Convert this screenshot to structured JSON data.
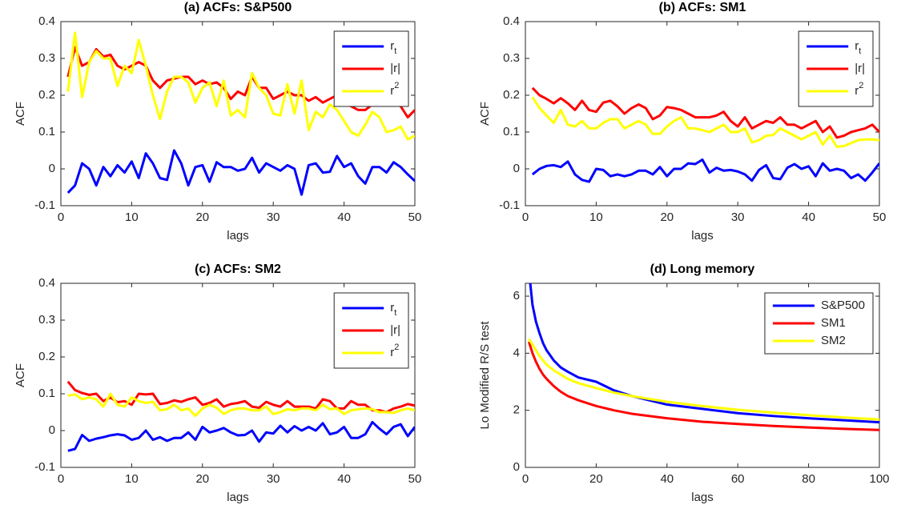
{
  "chart_data": [
    {
      "type": "line",
      "title": "(a) ACFs: S&P500",
      "x_label": "lags",
      "y_label": "ACF",
      "x": [
        1,
        2,
        3,
        4,
        5,
        6,
        7,
        8,
        9,
        10,
        11,
        12,
        13,
        14,
        15,
        16,
        17,
        18,
        19,
        20,
        21,
        22,
        23,
        24,
        25,
        26,
        27,
        28,
        29,
        30,
        31,
        32,
        33,
        34,
        35,
        36,
        37,
        38,
        39,
        40,
        41,
        42,
        43,
        44,
        45,
        46,
        47,
        48,
        49,
        50
      ],
      "xlim": [
        0,
        50
      ],
      "xticks": [
        0,
        10,
        20,
        30,
        40,
        50
      ],
      "ylim": [
        -0.1,
        0.4
      ],
      "yticks": [
        -0.1,
        0,
        0.1,
        0.2,
        0.3,
        0.4
      ],
      "legend": "upper right",
      "series": [
        {
          "name": "r_t",
          "color": "#0000ff",
          "values": [
            -0.065,
            -0.045,
            0.015,
            0,
            -0.045,
            0.005,
            -0.02,
            0.01,
            -0.01,
            0.02,
            -0.025,
            0.042,
            0.015,
            -0.025,
            -0.03,
            0.05,
            0.015,
            -0.045,
            0.005,
            0.01,
            -0.035,
            0.018,
            0.005,
            0.005,
            -0.005,
            0,
            0.03,
            -0.01,
            0.015,
            0.005,
            -0.005,
            0.01,
            0,
            -0.07,
            0.01,
            0.015,
            -0.01,
            -0.008,
            0.035,
            0.005,
            0.015,
            -0.02,
            -0.04,
            0.005,
            0.005,
            -0.01,
            0.018,
            0.005,
            -0.015,
            -0.033
          ]
        },
        {
          "name": "|r|",
          "color": "#ff0000",
          "values": [
            0.25,
            0.33,
            0.28,
            0.29,
            0.325,
            0.305,
            0.31,
            0.28,
            0.27,
            0.28,
            0.29,
            0.28,
            0.24,
            0.22,
            0.24,
            0.245,
            0.25,
            0.25,
            0.23,
            0.24,
            0.23,
            0.235,
            0.22,
            0.19,
            0.21,
            0.2,
            0.25,
            0.22,
            0.22,
            0.19,
            0.2,
            0.21,
            0.2,
            0.2,
            0.185,
            0.195,
            0.18,
            0.19,
            0.2,
            0.18,
            0.17,
            0.16,
            0.16,
            0.175,
            0.19,
            0.18,
            0.18,
            0.17,
            0.14,
            0.16
          ]
        },
        {
          "name": "r^2",
          "color": "#ffff00",
          "values": [
            0.21,
            0.37,
            0.195,
            0.29,
            0.32,
            0.3,
            0.3,
            0.225,
            0.28,
            0.26,
            0.35,
            0.28,
            0.2,
            0.135,
            0.21,
            0.25,
            0.25,
            0.235,
            0.18,
            0.22,
            0.235,
            0.17,
            0.24,
            0.145,
            0.16,
            0.14,
            0.26,
            0.22,
            0.2,
            0.15,
            0.145,
            0.23,
            0.15,
            0.24,
            0.105,
            0.155,
            0.14,
            0.175,
            0.16,
            0.13,
            0.1,
            0.09,
            0.12,
            0.155,
            0.14,
            0.1,
            0.105,
            0.115,
            0.08,
            0.09
          ]
        }
      ]
    },
    {
      "type": "line",
      "title": "(b) ACFs: SM1",
      "x_label": "lags",
      "y_label": "ACF",
      "x": [
        1,
        2,
        3,
        4,
        5,
        6,
        7,
        8,
        9,
        10,
        11,
        12,
        13,
        14,
        15,
        16,
        17,
        18,
        19,
        20,
        21,
        22,
        23,
        24,
        25,
        26,
        27,
        28,
        29,
        30,
        31,
        32,
        33,
        34,
        35,
        36,
        37,
        38,
        39,
        40,
        41,
        42,
        43,
        44,
        45,
        46,
        47,
        48,
        49,
        50
      ],
      "xlim": [
        0,
        50
      ],
      "xticks": [
        0,
        10,
        20,
        30,
        40,
        50
      ],
      "ylim": [
        -0.1,
        0.4
      ],
      "yticks": [
        -0.1,
        0,
        0.1,
        0.2,
        0.3,
        0.4
      ],
      "legend": "upper right",
      "series": [
        {
          "name": "r_t",
          "color": "#0000ff",
          "values": [
            -0.015,
            0,
            0.008,
            0.01,
            0.005,
            0.02,
            -0.015,
            -0.03,
            -0.035,
            0,
            -0.003,
            -0.02,
            -0.015,
            -0.02,
            -0.015,
            -0.005,
            -0.005,
            -0.015,
            0.005,
            -0.02,
            0,
            0,
            0.015,
            0.013,
            0.025,
            -0.01,
            0.003,
            -0.005,
            -0.003,
            -0.007,
            -0.015,
            -0.032,
            -0.003,
            0.01,
            -0.025,
            -0.028,
            0.003,
            0.013,
            0,
            0.007,
            -0.02,
            0.015,
            -0.005,
            0,
            -0.005,
            -0.025,
            -0.015,
            -0.032,
            -0.01,
            0.015
          ]
        },
        {
          "name": "|r|",
          "color": "#ff0000",
          "values": [
            0.22,
            0.2,
            0.19,
            0.178,
            0.192,
            0.178,
            0.16,
            0.185,
            0.16,
            0.155,
            0.18,
            0.185,
            0.17,
            0.15,
            0.165,
            0.175,
            0.165,
            0.135,
            0.145,
            0.168,
            0.165,
            0.16,
            0.15,
            0.14,
            0.14,
            0.14,
            0.145,
            0.155,
            0.13,
            0.115,
            0.14,
            0.11,
            0.12,
            0.13,
            0.125,
            0.14,
            0.12,
            0.12,
            0.11,
            0.12,
            0.13,
            0.1,
            0.115,
            0.085,
            0.09,
            0.1,
            0.105,
            0.11,
            0.12,
            0.1
          ]
        },
        {
          "name": "r^2",
          "color": "#ffff00",
          "values": [
            0.195,
            0.165,
            0.145,
            0.125,
            0.16,
            0.12,
            0.115,
            0.13,
            0.11,
            0.11,
            0.125,
            0.135,
            0.135,
            0.11,
            0.12,
            0.13,
            0.12,
            0.095,
            0.095,
            0.115,
            0.13,
            0.14,
            0.11,
            0.11,
            0.105,
            0.1,
            0.11,
            0.12,
            0.1,
            0.1,
            0.11,
            0.072,
            0.078,
            0.09,
            0.092,
            0.11,
            0.1,
            0.09,
            0.08,
            0.09,
            0.1,
            0.066,
            0.09,
            0.06,
            0.062,
            0.07,
            0.078,
            0.08,
            0.08,
            0.078
          ]
        }
      ]
    },
    {
      "type": "line",
      "title": "(c) ACFs: SM2",
      "x_label": "lags",
      "y_label": "ACF",
      "x": [
        1,
        2,
        3,
        4,
        5,
        6,
        7,
        8,
        9,
        10,
        11,
        12,
        13,
        14,
        15,
        16,
        17,
        18,
        19,
        20,
        21,
        22,
        23,
        24,
        25,
        26,
        27,
        28,
        29,
        30,
        31,
        32,
        33,
        34,
        35,
        36,
        37,
        38,
        39,
        40,
        41,
        42,
        43,
        44,
        45,
        46,
        47,
        48,
        49,
        50
      ],
      "xlim": [
        0,
        50
      ],
      "xticks": [
        0,
        10,
        20,
        30,
        40,
        50
      ],
      "ylim": [
        -0.1,
        0.4
      ],
      "yticks": [
        -0.1,
        0,
        0.1,
        0.2,
        0.3,
        0.4
      ],
      "legend": "upper right",
      "series": [
        {
          "name": "r_t",
          "color": "#0000ff",
          "values": [
            -0.055,
            -0.05,
            -0.012,
            -0.028,
            -0.022,
            -0.018,
            -0.013,
            -0.01,
            -0.013,
            -0.025,
            -0.02,
            0,
            -0.025,
            -0.018,
            -0.028,
            -0.02,
            -0.02,
            -0.005,
            -0.025,
            0.01,
            -0.005,
            0,
            0.007,
            -0.005,
            -0.013,
            -0.012,
            0,
            -0.03,
            -0.005,
            -0.008,
            0.013,
            -0.005,
            0.012,
            0,
            0.01,
            0,
            0.02,
            -0.01,
            -0.005,
            0.01,
            -0.02,
            -0.02,
            -0.01,
            0.023,
            0.005,
            -0.01,
            0.01,
            0.017,
            -0.015,
            0.01
          ]
        },
        {
          "name": "|r|",
          "color": "#ff0000",
          "values": [
            0.133,
            0.11,
            0.102,
            0.097,
            0.1,
            0.08,
            0.09,
            0.077,
            0.08,
            0.07,
            0.1,
            0.098,
            0.1,
            0.072,
            0.075,
            0.082,
            0.078,
            0.085,
            0.09,
            0.07,
            0.075,
            0.085,
            0.065,
            0.072,
            0.075,
            0.08,
            0.065,
            0.062,
            0.078,
            0.07,
            0.065,
            0.08,
            0.065,
            0.065,
            0.065,
            0.06,
            0.085,
            0.08,
            0.06,
            0.06,
            0.08,
            0.07,
            0.07,
            0.055,
            0.055,
            0.05,
            0.06,
            0.065,
            0.072,
            0.068
          ]
        },
        {
          "name": "r^2",
          "color": "#ffff00",
          "values": [
            0.095,
            0.098,
            0.085,
            0.09,
            0.085,
            0.065,
            0.1,
            0.07,
            0.065,
            0.09,
            0.08,
            0.075,
            0.078,
            0.055,
            0.058,
            0.07,
            0.055,
            0.06,
            0.04,
            0.06,
            0.07,
            0.062,
            0.045,
            0.055,
            0.06,
            0.06,
            0.055,
            0.055,
            0.065,
            0.045,
            0.05,
            0.058,
            0.055,
            0.06,
            0.06,
            0.055,
            0.07,
            0.058,
            0.06,
            0.045,
            0.055,
            0.058,
            0.06,
            0.058,
            0.05,
            0.05,
            0.048,
            0.055,
            0.06,
            0.055
          ]
        }
      ]
    },
    {
      "type": "line",
      "title": "(d) Long memory",
      "x_label": "lags",
      "y_label": "Lo Modified R/S test",
      "x": [
        1,
        2,
        3,
        4,
        5,
        6,
        8,
        10,
        12,
        15,
        20,
        25,
        30,
        40,
        50,
        60,
        70,
        80,
        90,
        100
      ],
      "xlim": [
        0,
        100
      ],
      "xticks": [
        0,
        20,
        40,
        60,
        80,
        100
      ],
      "ylim": [
        0,
        6.45
      ],
      "yticks": [
        0,
        2,
        4,
        6
      ],
      "legend": "upper right",
      "series": [
        {
          "name": "S&P500",
          "color": "#0000ff",
          "values": [
            6.9,
            5.7,
            5.1,
            4.7,
            4.35,
            4.1,
            3.75,
            3.5,
            3.35,
            3.15,
            3.0,
            2.7,
            2.5,
            2.2,
            2.05,
            1.9,
            1.8,
            1.72,
            1.65,
            1.58
          ]
        },
        {
          "name": "SM1",
          "color": "#ff0000",
          "values": [
            4.4,
            4.0,
            3.7,
            3.45,
            3.25,
            3.1,
            2.85,
            2.65,
            2.5,
            2.35,
            2.15,
            2.0,
            1.88,
            1.72,
            1.6,
            1.52,
            1.45,
            1.4,
            1.35,
            1.31
          ]
        },
        {
          "name": "SM2",
          "color": "#ffff00",
          "values": [
            4.5,
            4.3,
            4.1,
            3.9,
            3.75,
            3.6,
            3.4,
            3.25,
            3.1,
            2.95,
            2.78,
            2.62,
            2.5,
            2.3,
            2.15,
            2.02,
            1.92,
            1.83,
            1.75,
            1.68
          ]
        }
      ]
    }
  ]
}
